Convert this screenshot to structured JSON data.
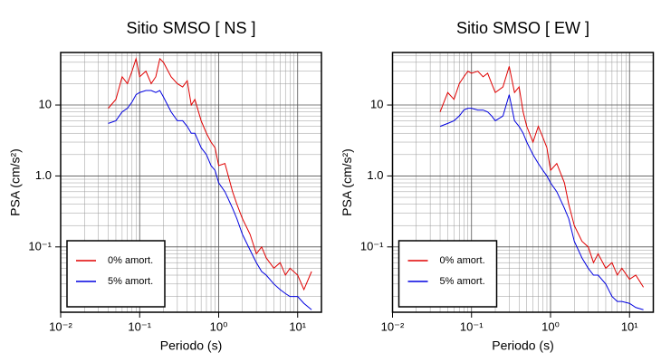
{
  "chart_data": [
    {
      "type": "line",
      "title": "Sitio SMSO [ NS ]",
      "xlabel": "Periodo (s)",
      "ylabel": "PSA (cm/s²)",
      "xscale": "log",
      "yscale": "log",
      "grid": true,
      "legend": "lower left",
      "xlim": [
        0.01,
        20
      ],
      "ylim": [
        0.012,
        55
      ],
      "xticks": [
        {
          "value": 0.01,
          "label": "10⁻²"
        },
        {
          "value": 0.1,
          "label": "10⁻¹"
        },
        {
          "value": 1,
          "label": "10⁰"
        },
        {
          "value": 10,
          "label": "10¹"
        }
      ],
      "yticks": [
        {
          "value": 0.1,
          "label": "10⁻¹"
        },
        {
          "value": 1,
          "label": "1.0"
        },
        10
      ],
      "x": [
        0.04,
        0.05,
        0.06,
        0.07,
        0.08,
        0.09,
        0.1,
        0.12,
        0.14,
        0.16,
        0.18,
        0.2,
        0.25,
        0.3,
        0.35,
        0.4,
        0.45,
        0.5,
        0.6,
        0.7,
        0.8,
        0.9,
        1,
        1.2,
        1.5,
        1.7,
        2,
        2.5,
        3,
        3.5,
        4,
        5,
        6,
        7,
        8,
        10,
        12,
        15
      ],
      "series": [
        {
          "name": "0% amort.",
          "color": "#e00000",
          "values": [
            9,
            12,
            25,
            20,
            30,
            45,
            25,
            30,
            20,
            25,
            45,
            40,
            25,
            20,
            18,
            22,
            10,
            12,
            6,
            4,
            3,
            2.5,
            1.4,
            1.5,
            0.6,
            0.4,
            0.25,
            0.15,
            0.08,
            0.1,
            0.07,
            0.05,
            0.06,
            0.04,
            0.05,
            0.04,
            0.025,
            0.045
          ]
        },
        {
          "name": "5% amort.",
          "color": "#0000e0",
          "values": [
            5.5,
            6,
            8,
            9,
            11,
            14,
            15,
            16,
            16,
            15,
            16,
            13,
            8,
            6,
            6,
            5,
            4,
            4,
            2.5,
            2,
            1.4,
            1.2,
            0.8,
            0.6,
            0.35,
            0.25,
            0.15,
            0.09,
            0.06,
            0.045,
            0.04,
            0.03,
            0.025,
            0.022,
            0.02,
            0.02,
            0.016,
            0.013
          ]
        }
      ]
    },
    {
      "type": "line",
      "title": "Sitio SMSO [ EW ]",
      "xlabel": "Periodo (s)",
      "ylabel": "PSA (cm/s²)",
      "xscale": "log",
      "yscale": "log",
      "grid": true,
      "legend": "lower left",
      "xlim": [
        0.01,
        20
      ],
      "ylim": [
        0.012,
        55
      ],
      "xticks": [
        {
          "value": 0.01,
          "label": "10⁻²"
        },
        {
          "value": 0.1,
          "label": "10⁻¹"
        },
        {
          "value": 1,
          "label": "10⁰"
        },
        {
          "value": 10,
          "label": "10¹"
        }
      ],
      "yticks": [
        {
          "value": 0.1,
          "label": "10⁻¹"
        },
        {
          "value": 1,
          "label": "1.0"
        },
        10
      ],
      "x": [
        0.04,
        0.05,
        0.06,
        0.07,
        0.08,
        0.09,
        0.1,
        0.12,
        0.14,
        0.16,
        0.18,
        0.2,
        0.25,
        0.3,
        0.35,
        0.4,
        0.45,
        0.5,
        0.6,
        0.7,
        0.8,
        0.9,
        1,
        1.2,
        1.5,
        1.7,
        2,
        2.5,
        3,
        3.5,
        4,
        5,
        6,
        7,
        8,
        10,
        12,
        15
      ],
      "series": [
        {
          "name": "0% amort.",
          "color": "#e00000",
          "values": [
            8,
            15,
            12,
            20,
            25,
            30,
            28,
            30,
            25,
            28,
            20,
            15,
            18,
            35,
            15,
            18,
            8,
            5,
            3,
            5,
            3.5,
            2.5,
            1.2,
            1.5,
            0.8,
            0.4,
            0.2,
            0.12,
            0.1,
            0.06,
            0.08,
            0.05,
            0.06,
            0.04,
            0.05,
            0.035,
            0.04,
            0.027
          ]
        },
        {
          "name": "5% amort.",
          "color": "#0000e0",
          "values": [
            5,
            5.5,
            6,
            7,
            8.5,
            9,
            9,
            8.5,
            8.5,
            8,
            7,
            6,
            7,
            14,
            6,
            5,
            4,
            3,
            2,
            1.5,
            1.2,
            1,
            0.8,
            0.6,
            0.35,
            0.25,
            0.12,
            0.07,
            0.05,
            0.04,
            0.04,
            0.03,
            0.02,
            0.017,
            0.017,
            0.016,
            0.014,
            0.013
          ]
        }
      ]
    }
  ]
}
